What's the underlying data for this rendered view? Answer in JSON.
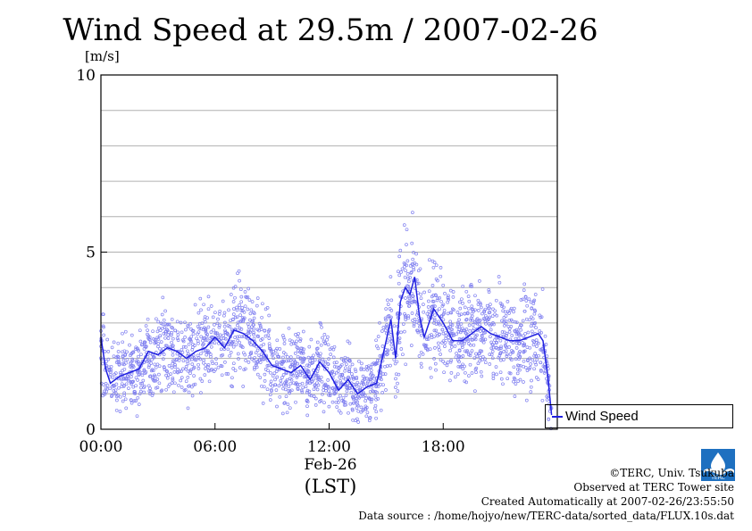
{
  "title": "Wind Speed at 29.5m / 2007-02-26",
  "y_unit": "[m/s]",
  "x_date": "Feb-26",
  "x_axis_label": "(LST)",
  "legend": {
    "label": "Wind Speed"
  },
  "footer": {
    "copyright": "©TERC, Univ. Tsukuba",
    "observed": "Observed at TERC Tower site",
    "created": "Created Automatically at 2007-02-26/23:55:50",
    "source": "Data source : /home/hojyo/new/TERC-data/sorted_data/FLUX.10s.dat"
  },
  "logo_text": "TERC",
  "colors": {
    "series": "#2020e0",
    "scatter": "#8080f0",
    "grid": "#b0b0b0"
  },
  "chart_data": {
    "type": "line",
    "title": "Wind Speed at 29.5m / 2007-02-26",
    "ylabel": "[m/s]",
    "xlabel": "(LST)",
    "ylim": [
      0,
      10
    ],
    "xlim_hours": [
      0,
      24
    ],
    "y_ticks": [
      "0",
      "5",
      "10"
    ],
    "x_ticks": [
      "00:00",
      "06:00",
      "12:00",
      "18:00"
    ],
    "grid": true,
    "legend_position": "right",
    "series": [
      {
        "name": "Wind Speed",
        "x_hours": [
          0,
          0.25,
          0.5,
          0.75,
          1,
          1.5,
          2,
          2.5,
          3,
          3.5,
          4,
          4.5,
          5,
          5.5,
          6,
          6.5,
          7,
          7.5,
          8,
          8.5,
          9,
          9.5,
          10,
          10.5,
          11,
          11.5,
          12,
          12.5,
          13,
          13.5,
          14,
          14.5,
          15,
          15.25,
          15.5,
          15.75,
          16,
          16.25,
          16.5,
          16.75,
          17,
          17.5,
          18,
          18.5,
          19,
          19.5,
          20,
          20.5,
          21,
          21.5,
          22,
          22.5,
          23,
          23.25,
          23.5,
          23.7
        ],
        "values": [
          2.6,
          1.7,
          1.3,
          1.4,
          1.5,
          1.6,
          1.7,
          2.2,
          2.1,
          2.3,
          2.2,
          2.0,
          2.2,
          2.3,
          2.6,
          2.3,
          2.8,
          2.7,
          2.5,
          2.2,
          1.8,
          1.7,
          1.6,
          1.8,
          1.4,
          1.9,
          1.6,
          1.1,
          1.4,
          1.0,
          1.2,
          1.3,
          2.5,
          3.1,
          2.0,
          3.6,
          4.0,
          3.8,
          4.3,
          3.2,
          2.6,
          3.4,
          3.0,
          2.5,
          2.5,
          2.7,
          2.9,
          2.7,
          2.6,
          2.5,
          2.5,
          2.6,
          2.7,
          2.5,
          1.5,
          0.4
        ]
      }
    ]
  }
}
